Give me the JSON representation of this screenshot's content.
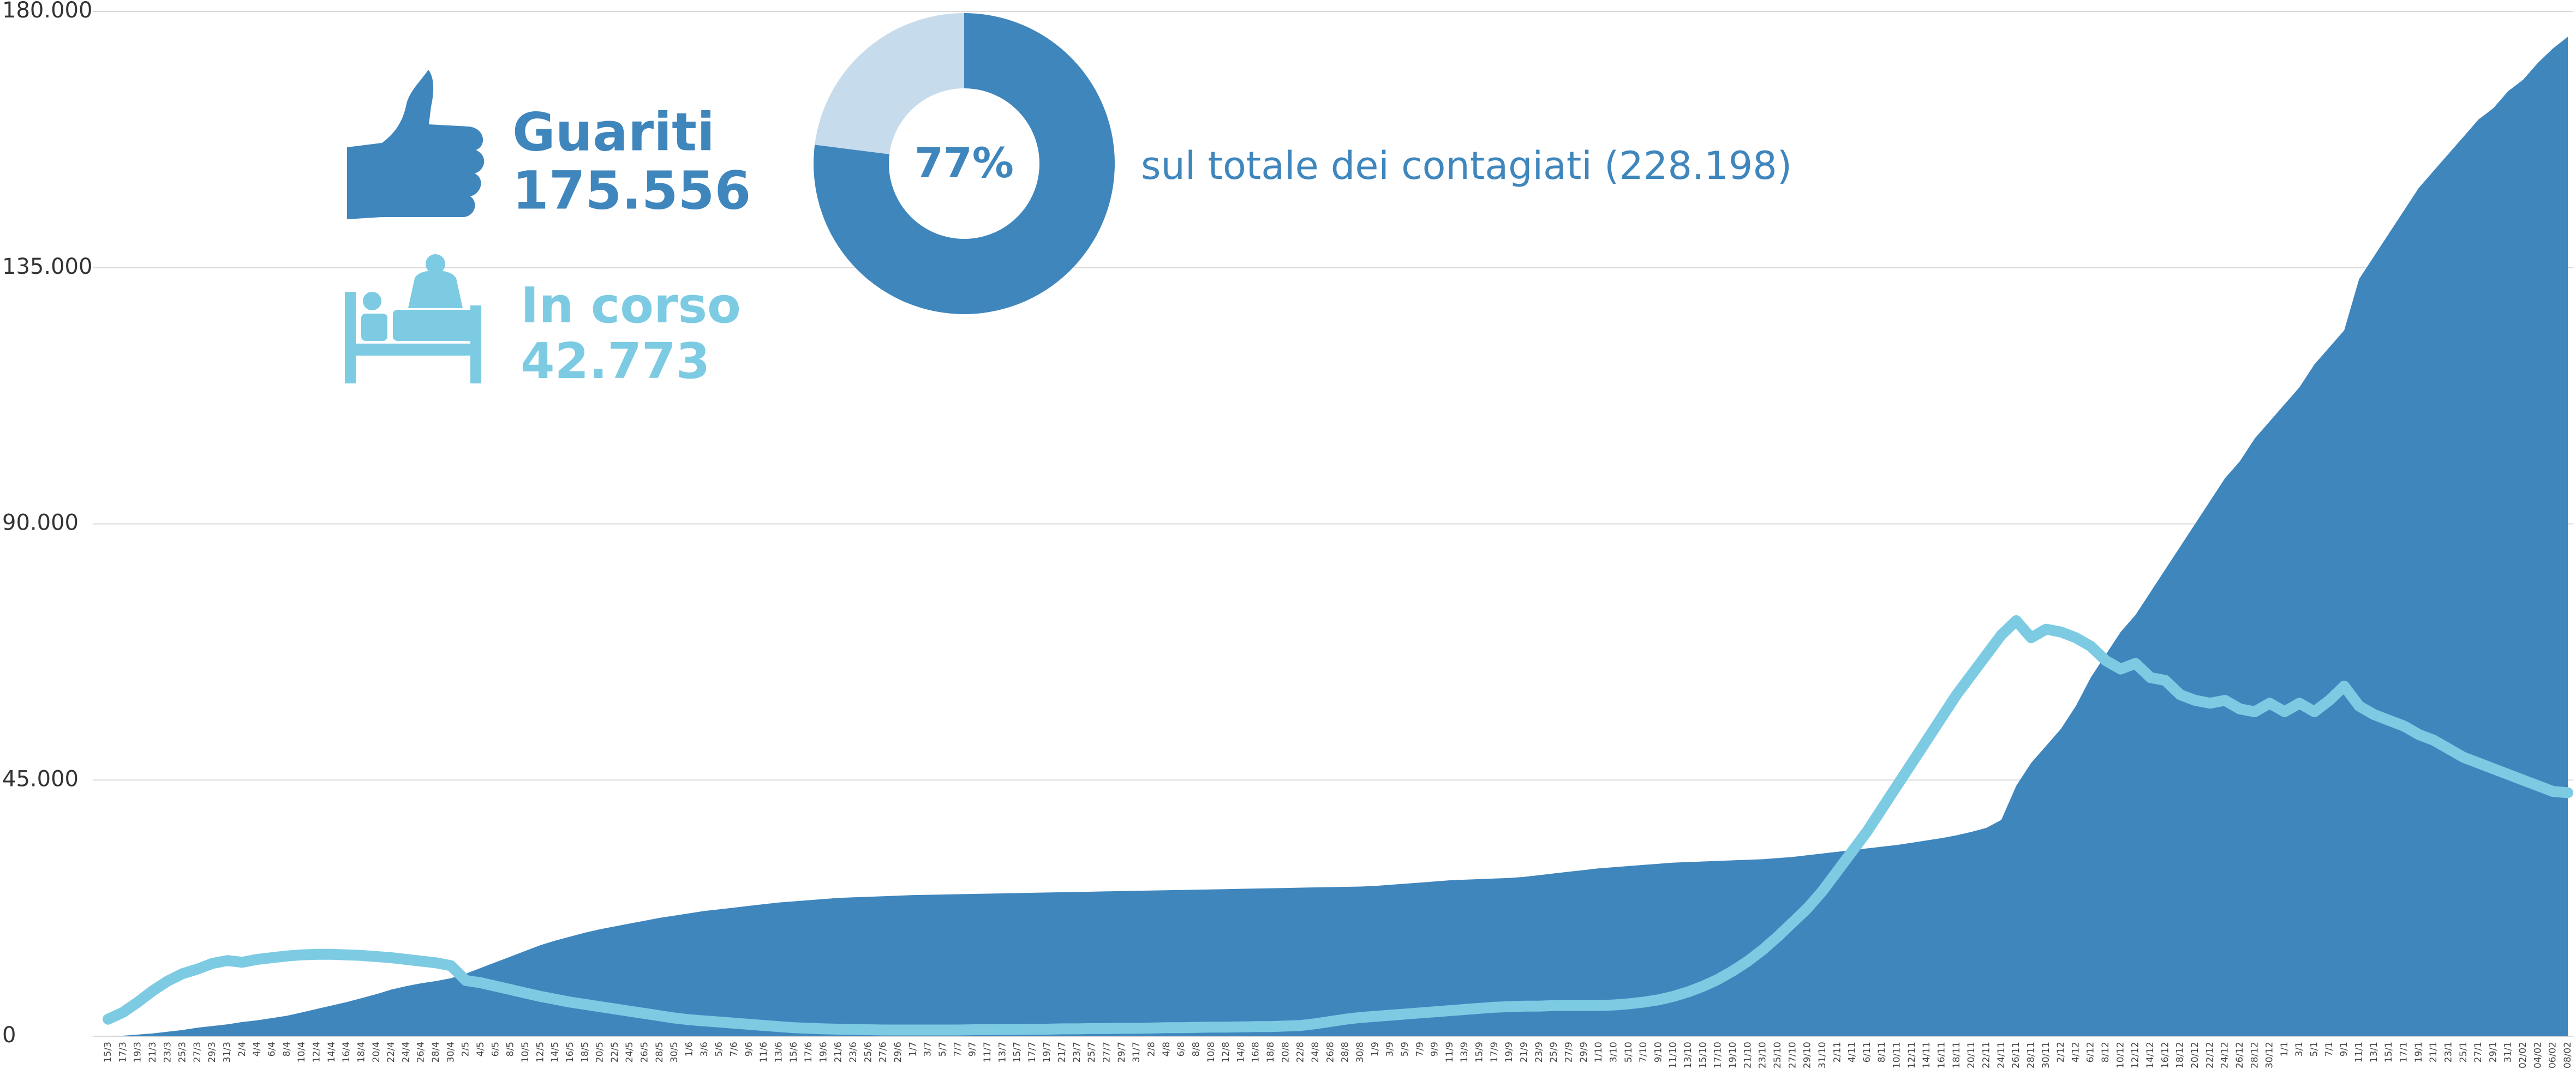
{
  "chart_data": [
    {
      "type": "line",
      "categories": [
        "15/3",
        "17/3",
        "19/3",
        "21/3",
        "23/3",
        "25/3",
        "27/3",
        "29/3",
        "31/3",
        "2/4",
        "4/4",
        "6/4",
        "8/4",
        "10/4",
        "12/4",
        "14/4",
        "16/4",
        "18/4",
        "20/4",
        "22/4",
        "24/4",
        "26/4",
        "28/4",
        "30/4",
        "2/5",
        "4/5",
        "6/5",
        "8/5",
        "10/5",
        "12/5",
        "14/5",
        "16/5",
        "18/5",
        "20/5",
        "22/5",
        "24/5",
        "26/5",
        "28/5",
        "30/5",
        "1/6",
        "3/6",
        "5/6",
        "7/6",
        "9/6",
        "11/6",
        "13/6",
        "15/6",
        "17/6",
        "19/6",
        "21/6",
        "23/6",
        "25/6",
        "27/6",
        "29/6",
        "1/7",
        "3/7",
        "5/7",
        "7/7",
        "9/7",
        "11/7",
        "13/7",
        "15/7",
        "17/7",
        "19/7",
        "21/7",
        "23/7",
        "25/7",
        "27/7",
        "29/7",
        "31/7",
        "2/8",
        "4/8",
        "6/8",
        "8/8",
        "10/8",
        "12/8",
        "14/8",
        "16/8",
        "18/8",
        "20/8",
        "22/8",
        "24/8",
        "26/8",
        "28/8",
        "30/8",
        "1/9",
        "3/9",
        "5/9",
        "7/9",
        "9/9",
        "11/9",
        "13/9",
        "15/9",
        "17/9",
        "19/9",
        "21/9",
        "23/9",
        "25/9",
        "27/9",
        "29/9",
        "1/10",
        "3/10",
        "5/10",
        "7/10",
        "9/10",
        "11/10",
        "13/10",
        "15/10",
        "17/10",
        "19/10",
        "21/10",
        "23/10",
        "25/10",
        "27/10",
        "29/10",
        "31/10",
        "2/11",
        "4/11",
        "6/11",
        "8/11",
        "10/11",
        "12/11",
        "14/11",
        "16/11",
        "18/11",
        "20/11",
        "22/11",
        "24/11",
        "26/11",
        "28/11",
        "30/11",
        "2/12",
        "4/12",
        "6/12",
        "8/12",
        "10/12",
        "12/12",
        "14/12",
        "16/12",
        "18/12",
        "20/12",
        "22/12",
        "24/12",
        "26/12",
        "28/12",
        "30/12",
        "1/1",
        "3/1",
        "5/1",
        "7/1",
        "9/1",
        "11/1",
        "13/1",
        "15/1",
        "17/1",
        "19/1",
        "21/1",
        "23/1",
        "25/1",
        "27/1",
        "29/1",
        "31/1",
        "02/02",
        "04/02",
        "06/02",
        "08/02"
      ],
      "series": [
        {
          "name": "Guariti",
          "total": "175.556",
          "style": "area",
          "color": "#3f86bd",
          "values": [
            0,
            100,
            300,
            500,
            800,
            1100,
            1500,
            1800,
            2100,
            2500,
            2800,
            3200,
            3600,
            4200,
            4800,
            5400,
            6000,
            6700,
            7400,
            8200,
            8800,
            9300,
            9700,
            10200,
            11000,
            12000,
            13000,
            14000,
            15000,
            16000,
            16800,
            17500,
            18200,
            18800,
            19300,
            19800,
            20300,
            20800,
            21200,
            21600,
            22000,
            22300,
            22600,
            22900,
            23200,
            23500,
            23700,
            23900,
            24100,
            24300,
            24400,
            24500,
            24600,
            24700,
            24800,
            24850,
            24900,
            24950,
            25000,
            25050,
            25100,
            25150,
            25200,
            25250,
            25300,
            25350,
            25400,
            25450,
            25500,
            25550,
            25600,
            25650,
            25700,
            25750,
            25800,
            25850,
            25900,
            25950,
            26000,
            26050,
            26100,
            26150,
            26200,
            26250,
            26300,
            26400,
            26600,
            26800,
            27000,
            27200,
            27400,
            27500,
            27600,
            27700,
            27800,
            28000,
            28300,
            28600,
            28900,
            29200,
            29500,
            29700,
            29900,
            30100,
            30300,
            30500,
            30600,
            30700,
            30800,
            30900,
            31000,
            31100,
            31300,
            31500,
            31800,
            32100,
            32400,
            32700,
            33000,
            33300,
            33600,
            34000,
            34400,
            34800,
            35300,
            35900,
            36600,
            38000,
            44000,
            48000,
            51000,
            54000,
            58000,
            63000,
            67000,
            71000,
            74000,
            78000,
            82000,
            86000,
            90000,
            94000,
            98000,
            101000,
            105000,
            108000,
            111000,
            114000,
            118000,
            121000,
            124000,
            133000,
            137000,
            141000,
            145000,
            149000,
            152000,
            155000,
            158000,
            161000,
            163000,
            166000,
            168000,
            171000,
            173500,
            175556
          ]
        },
        {
          "name": "In corso",
          "total": "42.773",
          "style": "line",
          "color": "#7ccbe3",
          "values": [
            3000,
            4200,
            6000,
            8000,
            9700,
            11000,
            11800,
            12800,
            13300,
            13000,
            13500,
            13800,
            14100,
            14300,
            14400,
            14400,
            14300,
            14200,
            14000,
            13800,
            13500,
            13200,
            12900,
            12400,
            9800,
            9400,
            8800,
            8200,
            7600,
            7000,
            6500,
            6000,
            5600,
            5200,
            4800,
            4400,
            4000,
            3600,
            3200,
            2900,
            2700,
            2500,
            2300,
            2100,
            1900,
            1700,
            1500,
            1400,
            1300,
            1250,
            1200,
            1150,
            1100,
            1100,
            1100,
            1100,
            1100,
            1100,
            1150,
            1150,
            1200,
            1200,
            1250,
            1250,
            1300,
            1300,
            1350,
            1350,
            1400,
            1400,
            1450,
            1500,
            1500,
            1550,
            1600,
            1600,
            1650,
            1700,
            1700,
            1800,
            1900,
            2200,
            2600,
            3000,
            3300,
            3500,
            3700,
            3900,
            4100,
            4300,
            4500,
            4700,
            4900,
            5100,
            5200,
            5300,
            5300,
            5400,
            5400,
            5400,
            5400,
            5500,
            5700,
            6000,
            6400,
            7000,
            7800,
            8800,
            10000,
            11500,
            13200,
            15200,
            17500,
            20000,
            22500,
            25500,
            29000,
            32500,
            36000,
            40000,
            44000,
            48000,
            52000,
            56000,
            60000,
            63500,
            67000,
            70500,
            73000,
            70000,
            71500,
            71000,
            70000,
            68500,
            66000,
            64500,
            65500,
            63000,
            62500,
            60000,
            59000,
            58500,
            59000,
            57500,
            57000,
            58500,
            57000,
            58500,
            57000,
            59000,
            61500,
            58000,
            56500,
            55500,
            54500,
            53000,
            52000,
            50500,
            49000,
            48000,
            47000,
            46000,
            45000,
            44000,
            43000,
            42773
          ]
        }
      ],
      "ylim": [
        0,
        180000
      ],
      "yticks": [
        {
          "value": 0,
          "label": "0"
        },
        {
          "value": 45000,
          "label": "45.000"
        },
        {
          "value": 90000,
          "label": "90.000"
        },
        {
          "value": 135000,
          "label": "135.000"
        },
        {
          "value": 180000,
          "label": "180.000"
        }
      ],
      "grid": true
    },
    {
      "type": "pie",
      "values": [
        77,
        23
      ],
      "value_labels": [
        "77%"
      ],
      "colors": [
        "#3f86bd",
        "#c6dcec"
      ],
      "annotation": "sul totale dei contagiati (228.198)"
    }
  ]
}
